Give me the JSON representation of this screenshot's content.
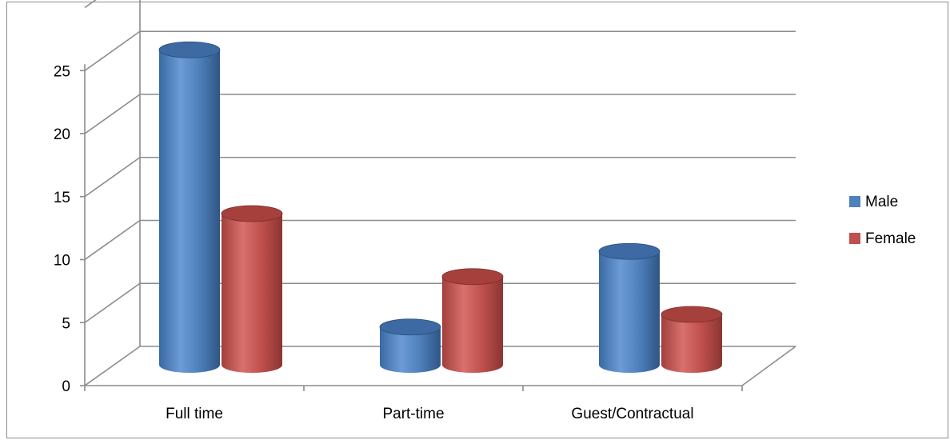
{
  "chart_data": {
    "type": "bar",
    "style": "3d-cylinder",
    "categories": [
      "Full time",
      "Part-time",
      "Guest/Contractual"
    ],
    "series": [
      {
        "name": "Male",
        "values": [
          25,
          3,
          9
        ],
        "color": "#4f81bd"
      },
      {
        "name": "Female",
        "values": [
          12,
          7,
          4
        ],
        "color": "#c0504d"
      }
    ],
    "y_ticks": [
      "0",
      "5",
      "10",
      "15",
      "20",
      "25"
    ],
    "ylim": [
      0,
      30
    ],
    "grid": true,
    "legend": "right",
    "title": "",
    "xlabel": "",
    "ylabel": ""
  }
}
